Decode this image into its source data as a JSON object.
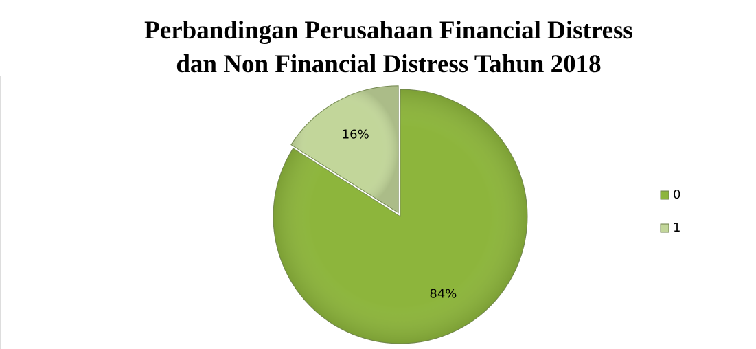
{
  "chart_data": {
    "type": "pie",
    "title": [
      "Perbandingan Perusahaan Financial Distress",
      "dan Non Financial Distress Tahun 2018"
    ],
    "categories": [
      "0",
      "1"
    ],
    "values": [
      84,
      16
    ],
    "value_labels": [
      "84%",
      "16%"
    ],
    "colors": [
      "#8db53c",
      "#c2d69a"
    ],
    "legend": "right"
  }
}
